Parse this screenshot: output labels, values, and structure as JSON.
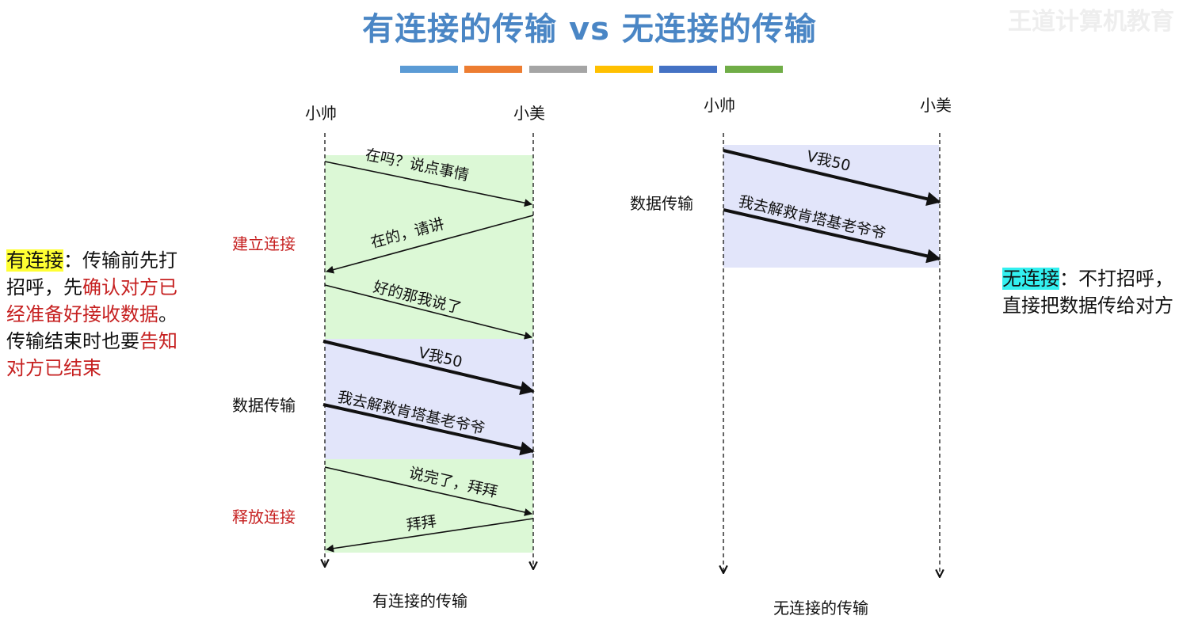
{
  "title": "有连接的传输 vs 无连接的传输",
  "watermark": "王道计算机教育",
  "color_bar": [
    "#5b9bd5",
    "#ed7d31",
    "#a5a5a5",
    "#ffc000",
    "#4472c4",
    "#70ad47"
  ],
  "left_diagram": {
    "sender": "小帅",
    "receiver": "小美",
    "caption": "有连接的传输",
    "phase_establish": "建立连接",
    "phase_data": "数据传输",
    "phase_release": "释放连接",
    "msg1": "在吗？说点事情",
    "msg2": "在的，请讲",
    "msg3": "好的那我说了",
    "msg4": "V我50",
    "msg5": "我去解救肯塔基老爷爷",
    "msg6": "说完了，拜拜",
    "msg7": "拜拜"
  },
  "right_diagram": {
    "sender": "小帅",
    "receiver": "小美",
    "caption": "无连接的传输",
    "phase_data": "数据传输",
    "msg1": "V我50",
    "msg2": "我去解救肯塔基老爷爷"
  },
  "left_note": {
    "term": "有连接",
    "p1": "：传输前先打招呼，先",
    "r1": "确认对方已经准备好接收数据",
    "p2": "。传输结束时也要",
    "r2": "告知对方已结束"
  },
  "right_note": {
    "term": "无连接",
    "p1": "：不打招呼，直接把数据传给对方"
  },
  "colors": {
    "title": "#4a86c5",
    "green_band": "#dcf8d6",
    "blue_band": "#e2e5fa",
    "red_text": "#c62020",
    "yellow_highlight": "#ffff33",
    "cyan_highlight": "#33f0f0"
  }
}
